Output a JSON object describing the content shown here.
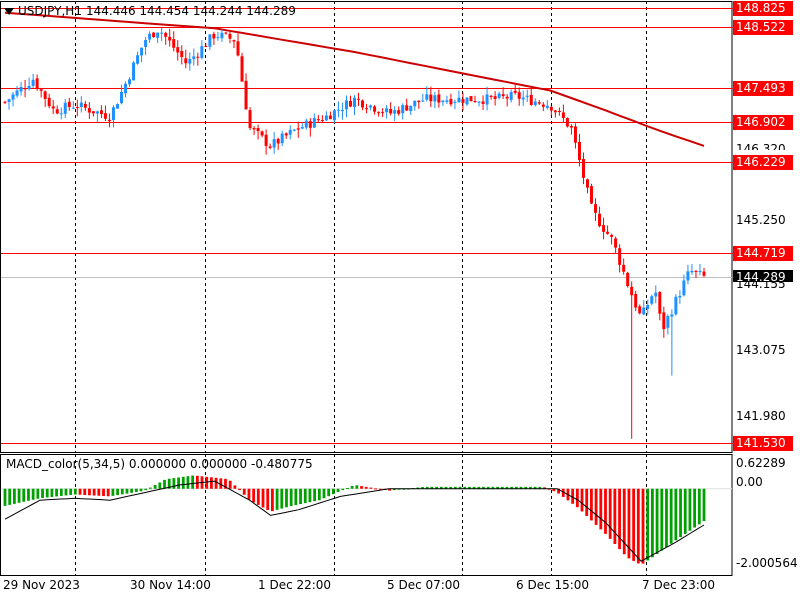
{
  "main_caption": {
    "symbol_timeframe": "USDJPY,H1",
    "ohlc": "144.446 144.454 144.244 144.289"
  },
  "macd_caption": "MACD_color(5,34,5) 0.000000 0.000000 -0.480775",
  "price_axis": {
    "level_labels": [
      "148.825",
      "148.522",
      "147.493",
      "146.902",
      "146.229",
      "144.719",
      "141.530"
    ],
    "current_price": "144.289",
    "tick_labels": [
      "145.250",
      "143.075",
      "141.980"
    ],
    "partial_tick_labels": [
      "146.320",
      "144.155"
    ]
  },
  "macd_axis": {
    "labels": [
      "0.62289",
      "0.00",
      "-2.000564"
    ]
  },
  "time_axis": {
    "labels": [
      "29 Nov 2023",
      "30 Nov 14:00",
      "1 Dec 22:00",
      "5 Dec 07:00",
      "6 Dec 15:00",
      "7 Dec 23:00"
    ]
  },
  "colors": {
    "bull": "#1e90ff",
    "bear": "#ff0000",
    "level_line": "#ff0000",
    "ma_line": "#cc0000",
    "hist_up": "#00a000",
    "hist_down": "#ff0000",
    "grid": "#000000"
  },
  "chart_data": {
    "type": "candlestick",
    "symbol": "USDJPY",
    "timeframe": "H1",
    "price_range": [
      141.4,
      149.0
    ],
    "levels": [
      148.825,
      148.522,
      147.493,
      146.902,
      146.229,
      144.719,
      141.53
    ],
    "current_price": 144.289,
    "ma_path": [
      [
        0,
        148.75
      ],
      [
        0.12,
        148.65
      ],
      [
        0.3,
        148.5
      ],
      [
        0.5,
        148.1
      ],
      [
        0.65,
        147.75
      ],
      [
        0.78,
        147.45
      ],
      [
        0.86,
        147.1
      ],
      [
        0.93,
        146.78
      ],
      [
        1.0,
        146.5
      ]
    ],
    "close_path": [
      [
        0,
        147.25
      ],
      [
        0.04,
        147.65
      ],
      [
        0.07,
        147.1
      ],
      [
        0.1,
        147.2
      ],
      [
        0.15,
        147.0
      ],
      [
        0.17,
        147.5
      ],
      [
        0.2,
        148.3
      ],
      [
        0.22,
        148.5
      ],
      [
        0.26,
        147.9
      ],
      [
        0.3,
        148.4
      ],
      [
        0.33,
        148.3
      ],
      [
        0.35,
        146.8
      ],
      [
        0.38,
        146.5
      ],
      [
        0.42,
        146.8
      ],
      [
        0.46,
        147.0
      ],
      [
        0.5,
        147.3
      ],
      [
        0.55,
        147.05
      ],
      [
        0.6,
        147.3
      ],
      [
        0.65,
        147.3
      ],
      [
        0.7,
        147.3
      ],
      [
        0.73,
        147.35
      ],
      [
        0.78,
        147.2
      ],
      [
        0.81,
        146.8
      ],
      [
        0.84,
        145.4
      ],
      [
        0.87,
        144.9
      ],
      [
        0.89,
        144.2
      ],
      [
        0.91,
        143.6
      ],
      [
        0.93,
        144.1
      ],
      [
        0.94,
        143.4
      ],
      [
        0.96,
        143.9
      ],
      [
        0.98,
        144.4
      ],
      [
        1.0,
        144.29
      ]
    ],
    "macd_range": [
      -2.000564,
      0.62289
    ],
    "macd_path": [
      [
        0,
        -0.45
      ],
      [
        0.05,
        -0.25
      ],
      [
        0.1,
        -0.15
      ],
      [
        0.15,
        -0.2
      ],
      [
        0.2,
        -0.05
      ],
      [
        0.23,
        0.25
      ],
      [
        0.27,
        0.35
      ],
      [
        0.32,
        0.25
      ],
      [
        0.35,
        -0.3
      ],
      [
        0.38,
        -0.6
      ],
      [
        0.41,
        -0.45
      ],
      [
        0.45,
        -0.3
      ],
      [
        0.5,
        0.1
      ],
      [
        0.55,
        -0.05
      ],
      [
        0.6,
        0.05
      ],
      [
        0.65,
        0.05
      ],
      [
        0.7,
        0.05
      ],
      [
        0.77,
        0.05
      ],
      [
        0.79,
        -0.1
      ],
      [
        0.82,
        -0.5
      ],
      [
        0.86,
        -1.2
      ],
      [
        0.89,
        -1.8
      ],
      [
        0.91,
        -2.0
      ],
      [
        0.93,
        -1.75
      ],
      [
        0.96,
        -1.35
      ],
      [
        1.0,
        -0.85
      ]
    ],
    "signal_path": [
      [
        0,
        -0.8
      ],
      [
        0.05,
        -0.3
      ],
      [
        0.1,
        -0.25
      ],
      [
        0.15,
        -0.3
      ],
      [
        0.2,
        -0.1
      ],
      [
        0.25,
        0.1
      ],
      [
        0.3,
        0.2
      ],
      [
        0.35,
        -0.3
      ],
      [
        0.38,
        -0.7
      ],
      [
        0.42,
        -0.55
      ],
      [
        0.48,
        -0.2
      ],
      [
        0.55,
        0.0
      ],
      [
        0.7,
        0.0
      ],
      [
        0.79,
        0.0
      ],
      [
        0.82,
        -0.3
      ],
      [
        0.86,
        -0.9
      ],
      [
        0.89,
        -1.5
      ],
      [
        0.91,
        -1.9
      ],
      [
        0.93,
        -1.7
      ],
      [
        0.96,
        -1.4
      ],
      [
        1.0,
        -0.95
      ]
    ]
  }
}
